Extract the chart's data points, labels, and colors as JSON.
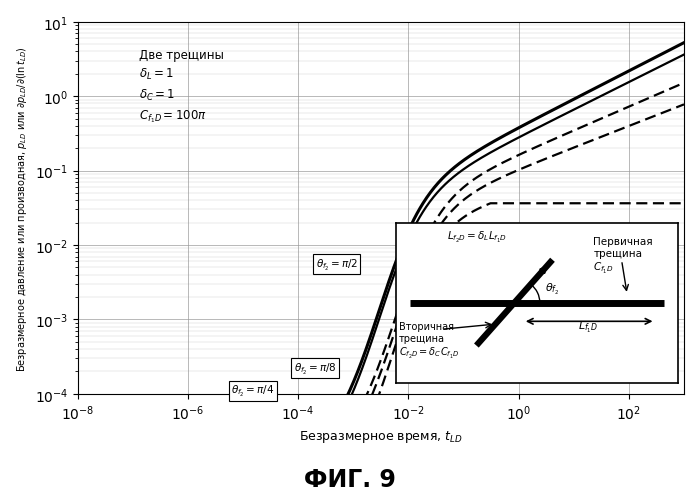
{
  "title": "ФИГ. 9",
  "xlabel": "Безразмерное время, $t_{LD}$",
  "ylabel": "Безразмерное давление или производная, $p_{LD}$ или $\\partial p_{LD}/\\partial(\\ln t_{LD})$",
  "xlim": [
    -8,
    3
  ],
  "ylim": [
    -4,
    1
  ],
  "annotation": "Две трещины\n$\\delta_L = 1$\n$\\delta_C = 1$\n$C_{f_1D} = 100\\pi$",
  "label_pi8": "$\\theta_{f_2} = \\pi/8$",
  "label_pi4": "$\\theta_{f_2} = \\pi/4$",
  "label_pi2": "$\\theta_{f_2} = \\pi/2$",
  "background_color": "#ffffff",
  "grid_color": "#999999"
}
